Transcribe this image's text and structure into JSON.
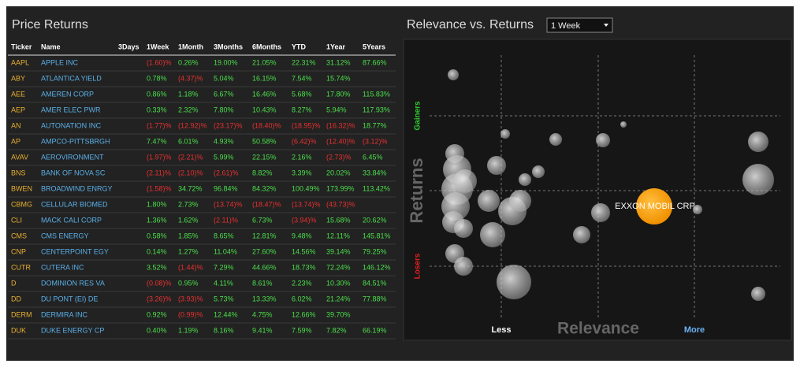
{
  "left_panel": {
    "title": "Price Returns"
  },
  "table": {
    "columns": [
      "Ticker",
      "Name",
      "3Days",
      "1Week",
      "1Month",
      "3Months",
      "6Months",
      "YTD",
      "1Year",
      "5Years"
    ],
    "rows": [
      [
        "AAPL",
        "APPLE INC",
        null,
        "(1.60)%",
        "0.26%",
        "19.00%",
        "21.05%",
        "22.31%",
        "31.12%",
        "87.66%"
      ],
      [
        "ABY",
        "ATLANTICA YIELD",
        null,
        "0.78%",
        "(4.37)%",
        "5.04%",
        "16.15%",
        "7.54%",
        "15.74%",
        null
      ],
      [
        "AEE",
        "AMEREN CORP",
        null,
        "0.86%",
        "1.18%",
        "6.67%",
        "16.46%",
        "5.68%",
        "17.80%",
        "115.83%"
      ],
      [
        "AEP",
        "AMER ELEC PWR",
        null,
        "0.33%",
        "2.32%",
        "7.80%",
        "10.43%",
        "8.27%",
        "5.94%",
        "117.93%"
      ],
      [
        "AN",
        "AUTONATION INC",
        null,
        "(1.77)%",
        "(12.92)%",
        "(23.17)%",
        "(18.40)%",
        "(18.95)%",
        "(16.32)%",
        "18.77%"
      ],
      [
        "AP",
        "AMPCO-PITTSBRGH",
        null,
        "7.47%",
        "6.01%",
        "4.93%",
        "50.58%",
        "(6.42)%",
        "(12.40)%",
        "(3.12)%"
      ],
      [
        "AVAV",
        "AEROVIRONMENT",
        null,
        "(1.97)%",
        "(2.21)%",
        "5.99%",
        "22.15%",
        "2.16%",
        "(2.73)%",
        "6.45%"
      ],
      [
        "BNS",
        "BANK OF NOVA SC",
        null,
        "(2.11)%",
        "(2.10)%",
        "(2.61)%",
        "8.82%",
        "3.39%",
        "20.02%",
        "33.84%"
      ],
      [
        "BWEN",
        "BROADWIND ENRGY",
        null,
        "(1.58)%",
        "34.72%",
        "96.84%",
        "84.32%",
        "100.49%",
        "173.99%",
        "113.42%"
      ],
      [
        "CBMG",
        "CELLULAR BIOMED",
        null,
        "1.80%",
        "2.73%",
        "(13.74)%",
        "(18.47)%",
        "(13.74)%",
        "(43.73)%",
        null
      ],
      [
        "CLI",
        "MACK CALI CORP",
        null,
        "1.36%",
        "1.62%",
        "(2.11)%",
        "6.73%",
        "(3.94)%",
        "15.68%",
        "20.62%"
      ],
      [
        "CMS",
        "CMS ENERGY",
        null,
        "0.58%",
        "1.85%",
        "8.65%",
        "12.81%",
        "9.48%",
        "12.11%",
        "145.81%"
      ],
      [
        "CNP",
        "CENTERPOINT EGY",
        null,
        "0.14%",
        "1.27%",
        "11.04%",
        "27.60%",
        "14.56%",
        "39.14%",
        "79.25%"
      ],
      [
        "CUTR",
        "CUTERA INC",
        null,
        "3.52%",
        "(1.44)%",
        "7.29%",
        "44.66%",
        "18.73%",
        "72.24%",
        "146.12%"
      ],
      [
        "D",
        "DOMINION RES VA",
        null,
        "(0.08)%",
        "0.95%",
        "4.11%",
        "8.61%",
        "2.23%",
        "10.30%",
        "84.51%"
      ],
      [
        "DD",
        "DU PONT (EI) DE",
        null,
        "(3.26)%",
        "(3.93)%",
        "5.73%",
        "13.33%",
        "6.02%",
        "21.24%",
        "77.88%"
      ],
      [
        "DERM",
        "DERMIRA INC",
        null,
        "0.92%",
        "(0.99)%",
        "12.44%",
        "4.75%",
        "12.66%",
        "39.70%",
        null
      ],
      [
        "DUK",
        "DUKE ENERGY CP",
        null,
        "0.40%",
        "1.19%",
        "8.16%",
        "9.41%",
        "7.59%",
        "7.82%",
        "66.19%"
      ]
    ]
  },
  "right_panel": {
    "title": "Relevance vs. Returns",
    "dropdown": "1 Week",
    "y_labels": {
      "top": "Gainers",
      "middle": "Returns",
      "bottom": "Losers"
    },
    "x_labels": {
      "left": "Less",
      "middle": "Relevance",
      "right": "More"
    },
    "highlight_label": "EXXON MOBIL CRP"
  }
}
